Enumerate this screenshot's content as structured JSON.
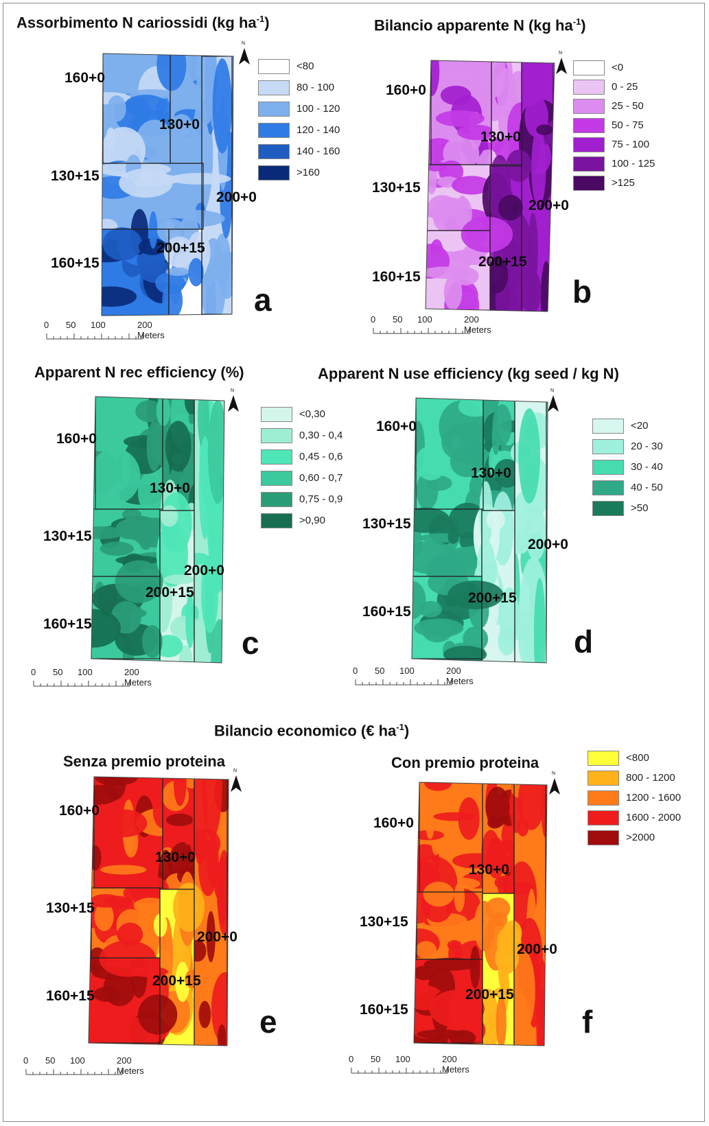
{
  "figure": {
    "super_title_main": "Bilancio economico (€ ha",
    "super_title_exp": "-1",
    "super_title_end": ")"
  },
  "panels": [
    {
      "id": "a",
      "title_main": "Assorbimento N cariossidi (kg ha",
      "title_exp": "-1",
      "title_end": ")",
      "letter": "a",
      "palette": [
        "#ffffff",
        "#c6d9f5",
        "#7fb0ee",
        "#2f7be6",
        "#1e5cc2",
        "#0a2a7a"
      ],
      "legend": [
        "<80",
        "80 - 100",
        "100 - 120",
        "120 - 140",
        "140 - 160",
        ">160"
      ],
      "plot_labels": [
        "160+0",
        "130+0",
        "130+15",
        "200+0",
        "160+15",
        "200+15"
      ],
      "scale": {
        "ticks": [
          "0",
          "50",
          "100"
        ],
        "units": "200 Meters"
      },
      "north": "N"
    },
    {
      "id": "b",
      "title_main": "Bilancio apparente N (kg ha",
      "title_exp": "-1",
      "title_end": ")",
      "letter": "b",
      "palette": [
        "#ffffff",
        "#ecc4f3",
        "#dc8cef",
        "#c33ae6",
        "#a21fcf",
        "#7a139e",
        "#4a0a63"
      ],
      "legend": [
        "<0",
        "0 - 25",
        "25 - 50",
        "50 - 75",
        "75 - 100",
        "100 - 125",
        ">125"
      ],
      "plot_labels": [
        "160+0",
        "130+0",
        "130+15",
        "200+0",
        "200+15",
        "160+15"
      ],
      "scale": {
        "ticks": [
          "0",
          "50",
          "100"
        ],
        "units": "200 Meters"
      },
      "north": "N"
    },
    {
      "id": "c",
      "title_main": "Apparent N rec efficiency (%)",
      "title_exp": "",
      "title_end": "",
      "letter": "c",
      "palette": [
        "#d4f5ea",
        "#9eeed3",
        "#4ee6b7",
        "#3cc99d",
        "#2a9c77",
        "#176e51"
      ],
      "legend": [
        "<0,30",
        "0,30 - 0,4",
        "0,45 - 0,6",
        "0,60 - 0,7",
        "0,75 - 0,9",
        ">0,90"
      ],
      "plot_labels": [
        "160+0",
        "130+0",
        "130+15",
        "200+0",
        "200+15",
        "160+15"
      ],
      "scale": {
        "ticks": [
          "0",
          "50",
          "100"
        ],
        "units": "200 Meters"
      },
      "north": "N"
    },
    {
      "id": "d",
      "title_main": "Apparent N use efficiency (kg seed / kg N)",
      "title_exp": "",
      "title_end": "",
      "letter": "d",
      "palette": [
        "#d6f6ef",
        "#9ff0dd",
        "#46dcb0",
        "#2fa987",
        "#1a7a5c"
      ],
      "legend": [
        "<20",
        "20 - 30",
        "30 - 40",
        "40 - 50",
        ">50"
      ],
      "plot_labels": [
        "160+0",
        "130+0",
        "130+15",
        "200+0",
        "200+15",
        "160+15"
      ],
      "scale": {
        "ticks": [
          "0",
          "50",
          "100"
        ],
        "units": "200 Meters"
      },
      "north": "N"
    },
    {
      "id": "e",
      "title_main": "Senza premio proteina",
      "title_exp": "",
      "title_end": "",
      "letter": "e",
      "palette": [
        "#ffff3a",
        "#ffb21a",
        "#ff7b1a",
        "#ee1c1c",
        "#a00c0c"
      ],
      "legend": [],
      "plot_labels": [
        "160+0",
        "130+0",
        "130+15",
        "200+0",
        "200+15",
        "160+15"
      ],
      "scale": {
        "ticks": [
          "0",
          "50",
          "100"
        ],
        "units": "200 Meters"
      },
      "north": "N"
    },
    {
      "id": "f",
      "title_main": "Con premio proteina",
      "title_exp": "",
      "title_end": "",
      "letter": "f",
      "palette": [
        "#ffff3a",
        "#ffb21a",
        "#ff7b1a",
        "#ee1c1c",
        "#a00c0c"
      ],
      "legend": [
        "<800",
        "800 - 1200",
        "1200 - 1600",
        "1600 - 2000",
        ">2000"
      ],
      "plot_labels": [
        "160+0",
        "130+0",
        "130+15",
        "200+0",
        "200+15",
        "160+15"
      ],
      "scale": {
        "ticks": [
          "0",
          "50",
          "100"
        ],
        "units": "200 Meters"
      },
      "north": "N"
    }
  ]
}
